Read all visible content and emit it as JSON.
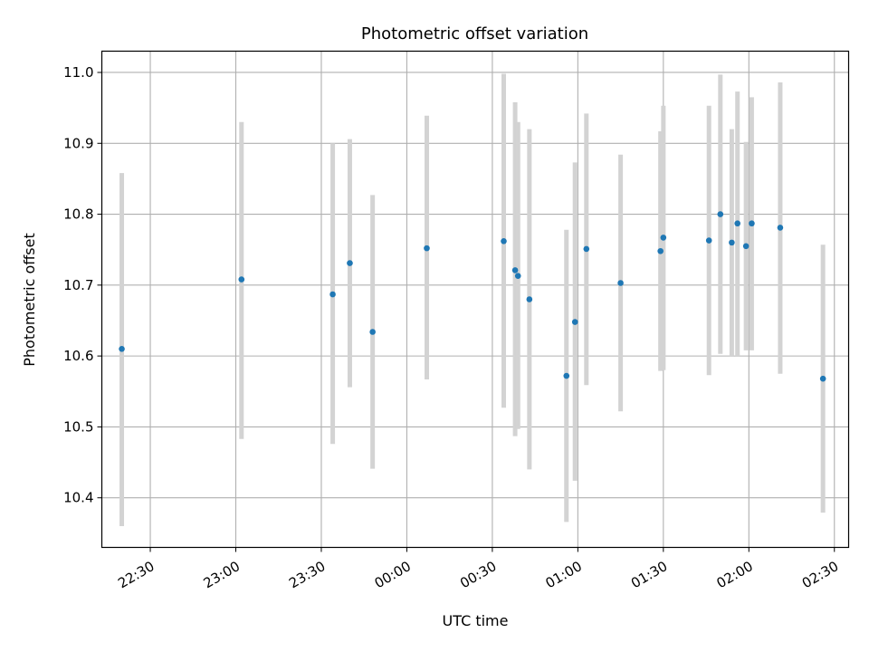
{
  "chart_data": {
    "type": "scatter",
    "title": "Photometric offset variation",
    "xlabel": "UTC time",
    "ylabel": "Photometric offset",
    "xlim": [
      "22:13",
      "02:35"
    ],
    "ylim": [
      10.33,
      11.03
    ],
    "grid": true,
    "x_ticks": [
      "22:30",
      "23:00",
      "23:30",
      "00:00",
      "00:30",
      "01:00",
      "01:30",
      "02:00",
      "02:30"
    ],
    "y_ticks": [
      "10.4",
      "10.5",
      "10.6",
      "10.7",
      "10.8",
      "10.9",
      "11.0"
    ],
    "colors": {
      "points": "#1f77b4",
      "errorbars": "#d3d3d3",
      "grid": "#b0b0b0"
    },
    "series": [
      {
        "points": [
          {
            "x": "22:20",
            "y": 10.61,
            "ylow": 10.36,
            "yhigh": 10.858
          },
          {
            "x": "23:02",
            "y": 10.708,
            "ylow": 10.483,
            "yhigh": 10.93
          },
          {
            "x": "23:34",
            "y": 10.687,
            "ylow": 10.476,
            "yhigh": 10.9
          },
          {
            "x": "23:40",
            "y": 10.731,
            "ylow": 10.556,
            "yhigh": 10.906
          },
          {
            "x": "23:48",
            "y": 10.634,
            "ylow": 10.441,
            "yhigh": 10.827
          },
          {
            "x": "00:07",
            "y": 10.752,
            "ylow": 10.567,
            "yhigh": 10.939
          },
          {
            "x": "00:34",
            "y": 10.762,
            "ylow": 10.527,
            "yhigh": 10.998
          },
          {
            "x": "00:38",
            "y": 10.721,
            "ylow": 10.487,
            "yhigh": 10.958
          },
          {
            "x": "00:39",
            "y": 10.713,
            "ylow": 10.497,
            "yhigh": 10.93
          },
          {
            "x": "00:43",
            "y": 10.68,
            "ylow": 10.44,
            "yhigh": 10.92
          },
          {
            "x": "00:56",
            "y": 10.572,
            "ylow": 10.366,
            "yhigh": 10.778
          },
          {
            "x": "00:59",
            "y": 10.648,
            "ylow": 10.424,
            "yhigh": 10.873
          },
          {
            "x": "01:03",
            "y": 10.751,
            "ylow": 10.559,
            "yhigh": 10.942
          },
          {
            "x": "01:15",
            "y": 10.703,
            "ylow": 10.522,
            "yhigh": 10.884
          },
          {
            "x": "01:29",
            "y": 10.748,
            "ylow": 10.579,
            "yhigh": 10.917
          },
          {
            "x": "01:30",
            "y": 10.767,
            "ylow": 10.58,
            "yhigh": 10.953
          },
          {
            "x": "01:46",
            "y": 10.763,
            "ylow": 10.573,
            "yhigh": 10.953
          },
          {
            "x": "01:50",
            "y": 10.8,
            "ylow": 10.603,
            "yhigh": 10.997
          },
          {
            "x": "01:54",
            "y": 10.76,
            "ylow": 10.6,
            "yhigh": 10.92
          },
          {
            "x": "01:56",
            "y": 10.787,
            "ylow": 10.6,
            "yhigh": 10.973
          },
          {
            "x": "01:59",
            "y": 10.755,
            "ylow": 10.608,
            "yhigh": 10.902
          },
          {
            "x": "02:01",
            "y": 10.787,
            "ylow": 10.608,
            "yhigh": 10.965
          },
          {
            "x": "02:11",
            "y": 10.781,
            "ylow": 10.575,
            "yhigh": 10.986
          },
          {
            "x": "02:26",
            "y": 10.568,
            "ylow": 10.379,
            "yhigh": 10.757
          }
        ]
      }
    ]
  }
}
